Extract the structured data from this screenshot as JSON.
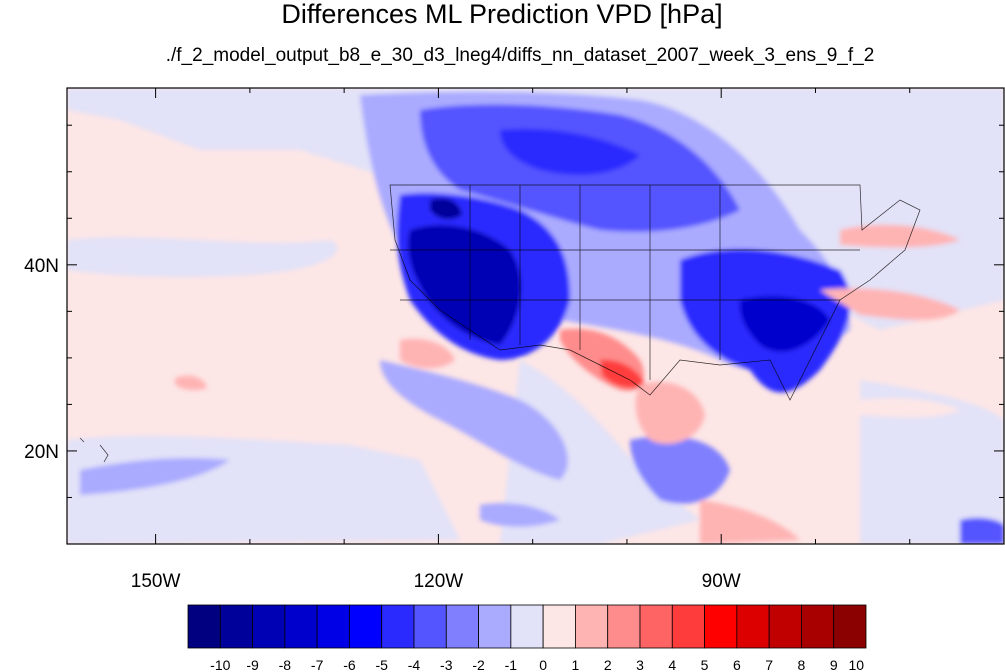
{
  "chart_data": {
    "type": "heatmap",
    "title": "Differences ML Prediction VPD [hPa]",
    "subtitle": "./f_2_model_output_b8_e_30_d3_lneg4/diffs_nn_dataset_2007_week_3_ens_9_f_2",
    "x_ticks": [
      {
        "value": -150,
        "label": "150W"
      },
      {
        "value": -120,
        "label": "120W"
      },
      {
        "value": -90,
        "label": "90W"
      }
    ],
    "y_ticks": [
      {
        "value": 40,
        "label": "40N"
      },
      {
        "value": 20,
        "label": "20N"
      }
    ],
    "xlim": [
      -159.4,
      -60
    ],
    "ylim": [
      10,
      59
    ],
    "colorbar": {
      "labels": [
        "-10",
        "-9",
        "-8",
        "-7",
        "-6",
        "-5",
        "-4",
        "-3",
        "-2",
        "-1",
        "0",
        "1",
        "2",
        "3",
        "4",
        "5",
        "6",
        "7",
        "8",
        "9",
        "10"
      ],
      "colors": [
        "#000080",
        "#00009a",
        "#0000b4",
        "#0000cd",
        "#0000e6",
        "#0000ff",
        "#2a2aff",
        "#5555ff",
        "#8080ff",
        "#aaaaff",
        "#e2e2f8",
        "#fde6e6",
        "#ffb4b4",
        "#ff8c8c",
        "#ff6464",
        "#ff3c3c",
        "#ff0000",
        "#dc0000",
        "#c00000",
        "#a80000",
        "#8b0000"
      ]
    }
  }
}
